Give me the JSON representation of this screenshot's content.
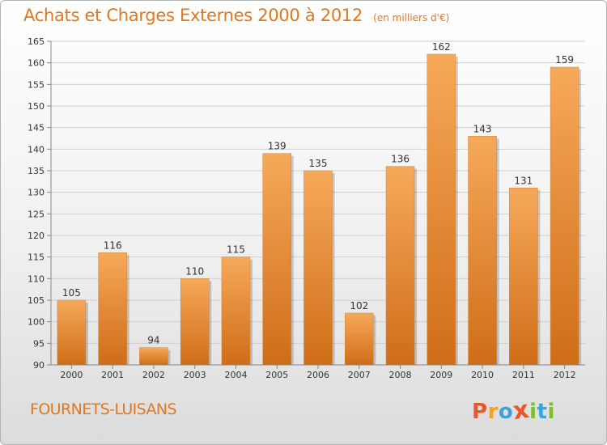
{
  "header": {
    "title": "Achats et Charges Externes 2000 à 2012",
    "unit": "(en milliers d'€)"
  },
  "footer": {
    "place": "FOURNETS-LUISANS",
    "logo_letters": [
      "P",
      "r",
      "o",
      "x",
      "i",
      "t",
      "i"
    ],
    "logo_colors": [
      "#e8562a",
      "#f3a21f",
      "#3aa3dd",
      "#e8562a",
      "#7cbf2a",
      "#3aa3dd",
      "#7cbf2a"
    ]
  },
  "colors": {
    "bar_light": "#f6a95a",
    "bar_dark": "#cf6d18",
    "accent": "#e07820",
    "grid": "#d0d0d0",
    "axis": "#888888"
  },
  "chart_data": {
    "type": "bar",
    "categories": [
      "2000",
      "2001",
      "2002",
      "2003",
      "2004",
      "2005",
      "2006",
      "2007",
      "2008",
      "2009",
      "2010",
      "2011",
      "2012"
    ],
    "values": [
      105,
      116,
      94,
      110,
      115,
      139,
      135,
      102,
      136,
      162,
      143,
      131,
      159
    ],
    "ylim": [
      90,
      165
    ],
    "yticks": [
      90,
      95,
      100,
      105,
      110,
      115,
      120,
      125,
      130,
      135,
      140,
      145,
      150,
      155,
      160,
      165
    ],
    "grid": true,
    "data_labels": true,
    "title": "Achats et Charges Externes 2000 à 2012",
    "xlabel": "",
    "ylabel": ""
  }
}
